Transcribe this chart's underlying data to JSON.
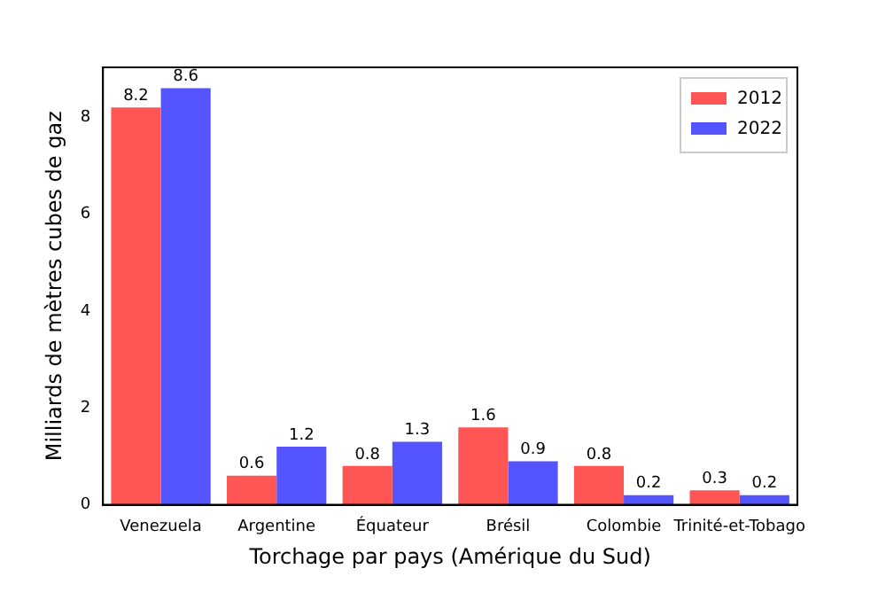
{
  "chart_data": {
    "type": "bar",
    "xlabel": "Torchage par pays (Amérique du Sud)",
    "ylabel": "Milliards de mètres cubes de gaz",
    "categories": [
      "Venezuela",
      "Argentine",
      "Équateur",
      "Brésil",
      "Colombie",
      "Trinité-et-Tobago"
    ],
    "series": [
      {
        "name": "2012",
        "color": "#ff5555",
        "values": [
          8.2,
          0.6,
          0.8,
          1.6,
          0.8,
          0.3
        ]
      },
      {
        "name": "2022",
        "color": "#5555ff",
        "values": [
          8.6,
          1.2,
          1.3,
          0.9,
          0.2,
          0.2
        ]
      }
    ],
    "ylim": [
      0,
      9.03
    ],
    "yticks": [
      0,
      2,
      4,
      6,
      8
    ],
    "data_labels": true,
    "grid": false,
    "legend": "top right"
  }
}
